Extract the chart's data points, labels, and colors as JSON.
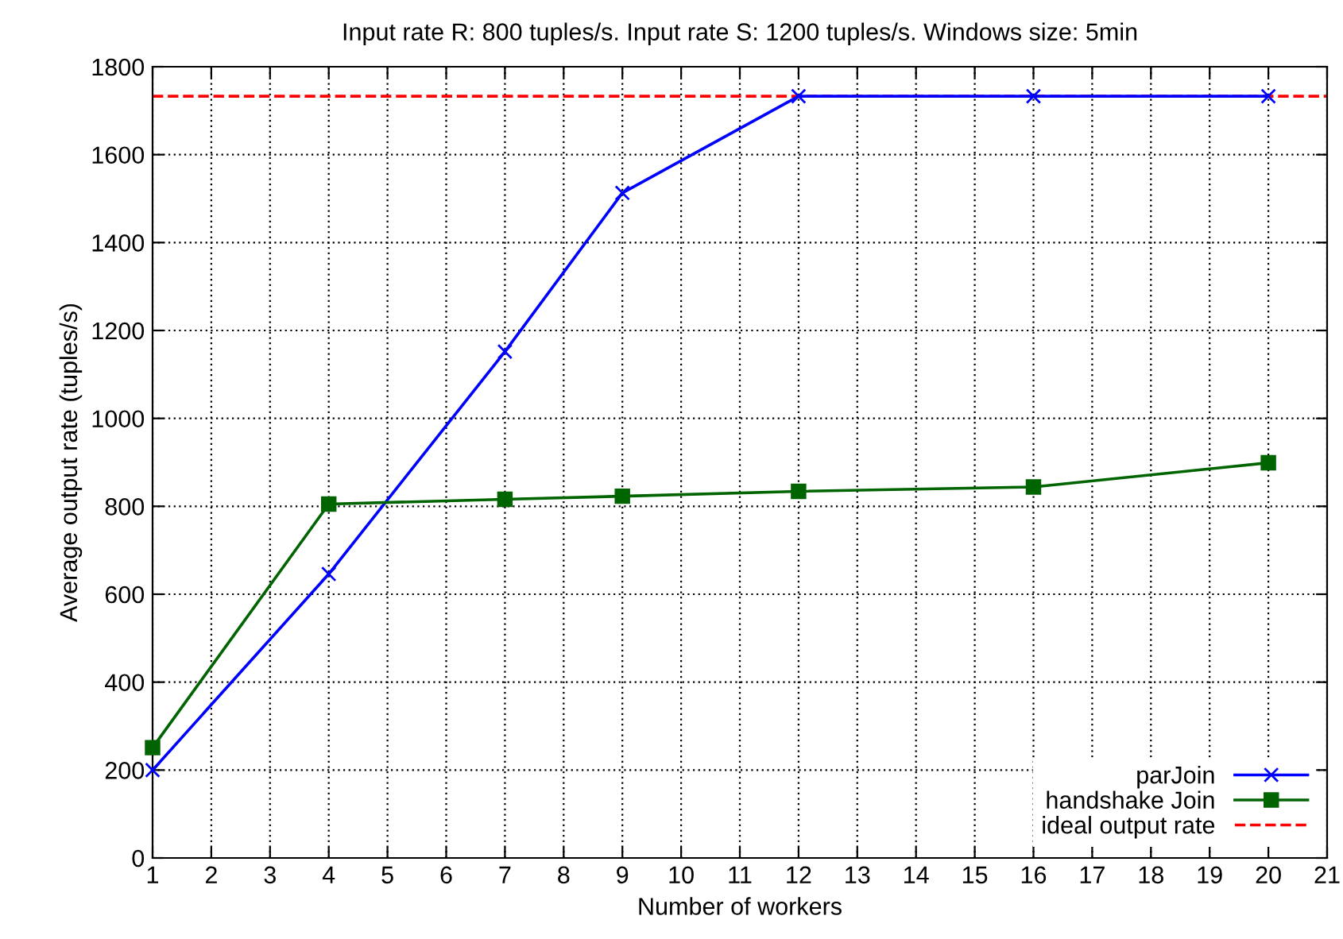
{
  "chart_data": {
    "type": "line",
    "title": "Input rate R: 800 tuples/s. Input rate S: 1200 tuples/s. Windows size: 5min",
    "xlabel": "Number of workers",
    "ylabel": "Average output rate (tuples/s)",
    "x": [
      1,
      4,
      7,
      9,
      12,
      16,
      20
    ],
    "series": [
      {
        "name": "parJoin",
        "color": "#0000ff",
        "marker": "cross",
        "values": [
          200,
          646,
          1152,
          1513,
          1733,
          1733,
          1733
        ]
      },
      {
        "name": "handshake Join",
        "color": "#006400",
        "marker": "square",
        "values": [
          251,
          805,
          816,
          823,
          834,
          844,
          899
        ]
      }
    ],
    "ref_lines": [
      {
        "axis": "y",
        "value": 1733,
        "label": "ideal output rate",
        "color": "#ff0000",
        "line_style": "dashed"
      }
    ],
    "xlim": [
      1,
      21
    ],
    "xticks": [
      1,
      2,
      3,
      4,
      5,
      6,
      7,
      8,
      9,
      10,
      11,
      12,
      13,
      14,
      15,
      16,
      17,
      18,
      19,
      20,
      21
    ],
    "ylim": [
      0,
      1800
    ],
    "yticks": [
      0,
      200,
      400,
      600,
      800,
      1000,
      1200,
      1400,
      1600,
      1800
    ],
    "grid": true,
    "legend": "bottom right",
    "line_style": "solid"
  }
}
